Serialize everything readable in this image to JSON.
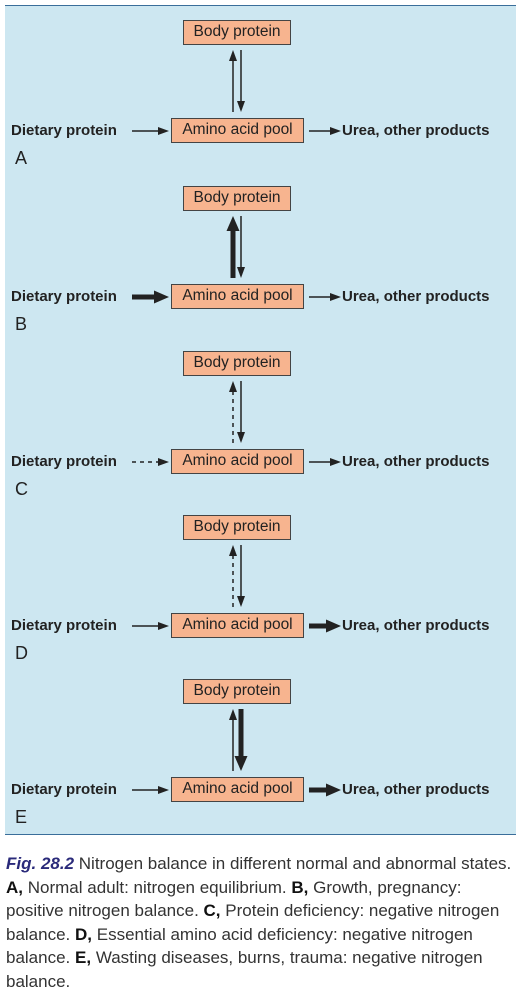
{
  "panels": [
    {
      "letter": "A",
      "up": "thin",
      "down": "thin",
      "diet": "thin",
      "urea": "thin"
    },
    {
      "letter": "B",
      "up": "thick",
      "down": "thin",
      "diet": "thick",
      "urea": "thin"
    },
    {
      "letter": "C",
      "up": "dashed",
      "down": "thin",
      "diet": "dashed",
      "urea": "thin"
    },
    {
      "letter": "D",
      "up": "dashed",
      "down": "thin",
      "diet": "thin",
      "urea": "thick"
    },
    {
      "letter": "E",
      "up": "thin",
      "down": "thick",
      "diet": "thin",
      "urea": "thick"
    }
  ],
  "labels": {
    "body_protein": "Body protein",
    "amino_acid_pool": "Amino acid pool",
    "dietary_protein": "Dietary protein",
    "urea": "Urea, other products"
  },
  "caption": {
    "fig_label": "Fig. 28.2",
    "intro": "Nitrogen balance in different normal and abnormal states.",
    "items": [
      {
        "letter": "A,",
        "text": "Normal adult: nitrogen equilibrium."
      },
      {
        "letter": "B,",
        "text": "Growth, pregnancy: positive nitrogen balance."
      },
      {
        "letter": "C,",
        "text": "Protein deficiency: negative nitrogen balance."
      },
      {
        "letter": "D,",
        "text": "Essential amino acid deficiency: negative nitrogen balance."
      },
      {
        "letter": "E,",
        "text": "Wasting diseases, burns, trauma: negative nitrogen balance."
      }
    ]
  },
  "colors": {
    "background": "#cde7f1",
    "box": "#f7b48f",
    "rule": "#3a6e9a",
    "fig_label": "#2a2a7a"
  }
}
